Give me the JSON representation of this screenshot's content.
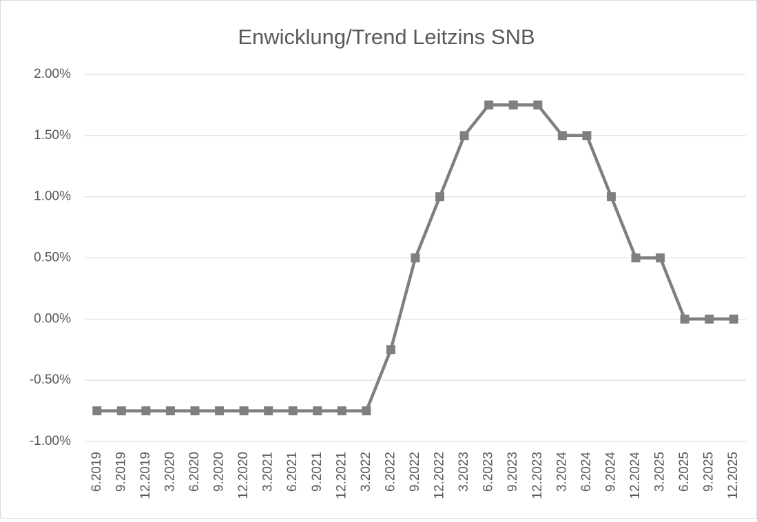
{
  "chart_data": {
    "type": "line",
    "title": "Enwicklung/Trend Leitzins SNB",
    "categories": [
      "6.2019",
      "9.2019",
      "12.2019",
      "3.2020",
      "6.2020",
      "9.2020",
      "12.2020",
      "3.2021",
      "6.2021",
      "9.2021",
      "12.2021",
      "3.2022",
      "6.2022",
      "9.2022",
      "12.2022",
      "3.2023",
      "6.2023",
      "9.2023",
      "12.2023",
      "3.2024",
      "6.2024",
      "9.2024",
      "12.2024",
      "3.2025",
      "6.2025",
      "9.2025",
      "12.2025"
    ],
    "series": [
      {
        "color": "#7f7f7f",
        "values": [
          -0.75,
          -0.75,
          -0.75,
          -0.75,
          -0.75,
          -0.75,
          -0.75,
          -0.75,
          -0.75,
          -0.75,
          -0.75,
          -0.75,
          -0.25,
          0.5,
          1.0,
          1.5,
          1.75,
          1.75,
          1.75,
          1.5,
          1.5,
          1.0,
          0.5,
          0.5,
          0,
          0,
          0
        ]
      }
    ],
    "ylim": [
      -1,
      2
    ],
    "yticks": [
      {
        "value": -1,
        "label": "-1.00%"
      },
      {
        "value": -0.5,
        "label": "-0.50%"
      },
      {
        "value": 0,
        "label": "0.00%"
      },
      {
        "value": 0.5,
        "label": "0.50%"
      },
      {
        "value": 1,
        "label": "1.00%"
      },
      {
        "value": 1.5,
        "label": "1.50%"
      },
      {
        "value": 2,
        "label": "2.00%"
      }
    ],
    "grid": true,
    "marker": "square"
  }
}
